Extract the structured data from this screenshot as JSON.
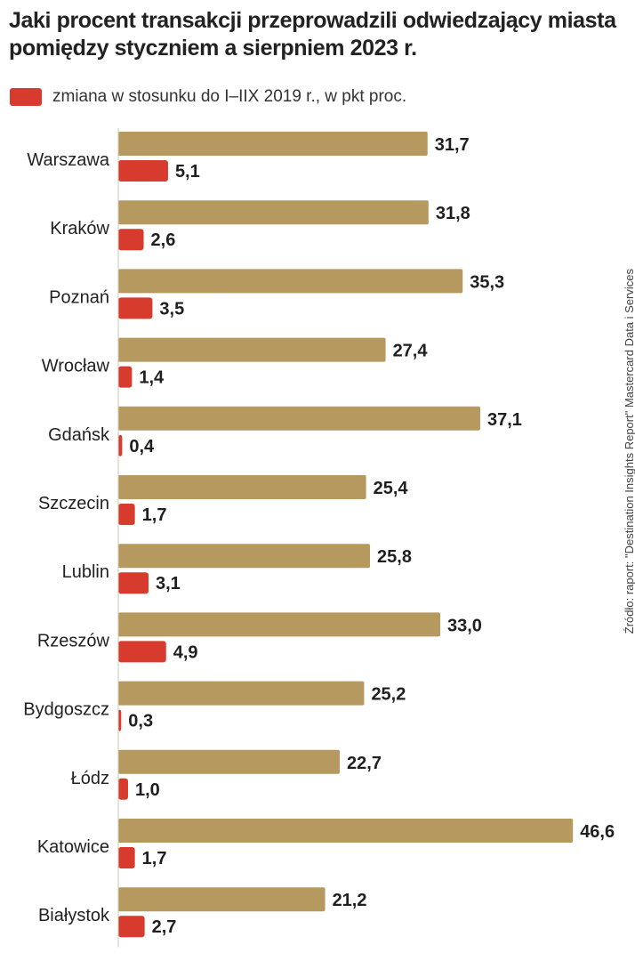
{
  "chart_data": {
    "type": "bar",
    "orientation": "horizontal",
    "title": "Jaki procent transakcji przeprowadzili odwiedzający miasta pomiędzy styczniem a sierpniem 2023 r.",
    "legend": {
      "series_label": "zmiana w stosunku do I–IIX 2019 r., w pkt proc.",
      "placement": "top-left"
    },
    "source": "Źródło: raport: \"Destination Insights Report\" Mastercard Data i Services",
    "categories": [
      "Warszawa",
      "Kraków",
      "Poznań",
      "Wrocław",
      "Gdańsk",
      "Szczecin",
      "Lublin",
      "Rzeszów",
      "Bydgoszcz",
      "Łódz",
      "Katowice",
      "Białystok"
    ],
    "series": [
      {
        "name": "procent transakcji",
        "color": "#b5995f",
        "values": [
          31.7,
          31.8,
          35.3,
          27.4,
          37.1,
          25.4,
          25.8,
          33.0,
          25.2,
          22.7,
          46.6,
          21.2
        ],
        "labels": [
          "31,7",
          "31,8",
          "35,3",
          "27,4",
          "37,1",
          "25,4",
          "25,8",
          "33,0",
          "25,2",
          "22,7",
          "46,6",
          "21,2"
        ]
      },
      {
        "name": "zmiana w stosunku do I–IIX 2019 r., w pkt proc.",
        "color": "#d63b2e",
        "values": [
          5.1,
          2.6,
          3.5,
          1.4,
          0.4,
          1.7,
          3.1,
          4.9,
          0.3,
          1.0,
          1.7,
          2.7
        ],
        "labels": [
          "5,1",
          "2,6",
          "3,5",
          "1,4",
          "0,4",
          "1,7",
          "3,1",
          "4,9",
          "0,3",
          "1,0",
          "1,7",
          "2,7"
        ]
      }
    ],
    "xlim": [
      0,
      50
    ],
    "grid": false
  }
}
